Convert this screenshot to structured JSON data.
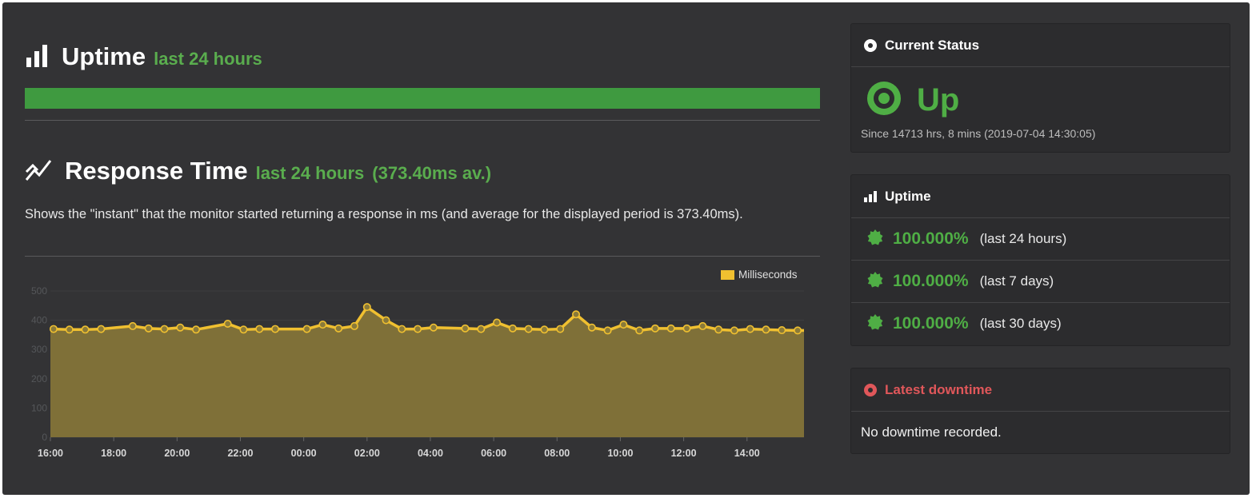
{
  "uptime_section": {
    "title": "Uptime",
    "subtitle": "last 24 hours",
    "bar_fraction": 1.0,
    "bar_color": "#3f9a40"
  },
  "response_section": {
    "title": "Response Time",
    "subtitle": "last 24 hours",
    "average": "(373.40ms av.)",
    "description": "Shows the \"instant\" that the monitor started returning a response in ms (and average for the displayed period is 373.40ms)."
  },
  "chart_data": {
    "type": "area",
    "legend": "Milliseconds",
    "legend_position": "top-right",
    "ylim": [
      0,
      500
    ],
    "yticks": [
      "0",
      "100",
      "200",
      "300",
      "400",
      "500"
    ],
    "xticks": [
      "16:00",
      "18:00",
      "20:00",
      "22:00",
      "00:00",
      "02:00",
      "04:00",
      "06:00",
      "08:00",
      "10:00",
      "12:00",
      "14:00"
    ],
    "grid": true,
    "line_color": "#f0c030",
    "fill_color": "#7f7038",
    "series": [
      {
        "name": "Milliseconds",
        "x": [
          0.1,
          0.6,
          1.1,
          1.6,
          2.6,
          3.1,
          3.6,
          4.1,
          4.6,
          5.6,
          6.1,
          6.6,
          7.1,
          8.1,
          8.6,
          9.1,
          9.6,
          10.0,
          10.6,
          11.1,
          11.6,
          12.1,
          13.1,
          13.6,
          14.1,
          14.6,
          15.1,
          15.6,
          16.1,
          16.6,
          17.1,
          17.6,
          18.1,
          18.6,
          19.1,
          19.6,
          20.1,
          20.6,
          21.1,
          21.6,
          22.1,
          22.6,
          23.1,
          23.6
        ],
        "values": [
          370,
          368,
          368,
          370,
          380,
          372,
          370,
          375,
          368,
          388,
          368,
          370,
          370,
          370,
          385,
          372,
          380,
          445,
          400,
          370,
          370,
          375,
          372,
          370,
          392,
          372,
          370,
          368,
          370,
          420,
          375,
          365,
          385,
          365,
          372,
          372,
          372,
          380,
          368,
          365,
          370,
          368,
          366,
          365
        ]
      }
    ]
  },
  "current_status": {
    "header": "Current Status",
    "status": "Up",
    "since": "Since 14713 hrs, 8 mins (2019-07-04 14:30:05)",
    "color": "#4fae45"
  },
  "uptime_panel": {
    "header": "Uptime",
    "rows": [
      {
        "pct": "100.000%",
        "period": "(last 24 hours)"
      },
      {
        "pct": "100.000%",
        "period": "(last 7 days)"
      },
      {
        "pct": "100.000%",
        "period": "(last 30 days)"
      }
    ]
  },
  "downtime_panel": {
    "header": "Latest downtime",
    "message": "No downtime recorded.",
    "color": "#e0575a"
  }
}
